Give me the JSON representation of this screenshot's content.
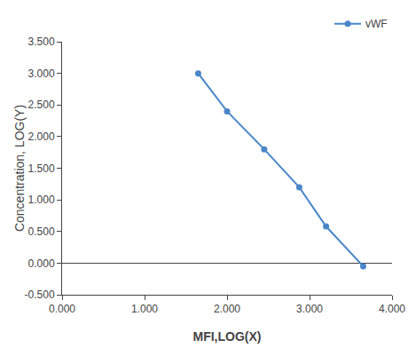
{
  "chart_data": {
    "type": "line",
    "x": [
      1.65,
      2.0,
      2.45,
      2.875,
      3.2,
      3.65
    ],
    "series": [
      {
        "name": "vWF",
        "color": "#4a86c8",
        "marker": "circle",
        "line_style": "solid",
        "values": [
          3.0,
          2.4,
          1.8,
          1.2,
          0.58,
          -0.05
        ]
      }
    ],
    "xlabel": "MFI,LOG(X)",
    "ylabel": "Concentration, LOG(Y)",
    "xlim": [
      0.0,
      4.0
    ],
    "ylim": [
      -0.5,
      3.5
    ],
    "xticks": [
      {
        "value": 0.0,
        "label": "0.000"
      },
      {
        "value": 1.0,
        "label": "1.000"
      },
      {
        "value": 2.0,
        "label": "2.000"
      },
      {
        "value": 3.0,
        "label": "3.000"
      },
      {
        "value": 4.0,
        "label": "4.000"
      }
    ],
    "yticks": [
      {
        "value": -0.5,
        "label": "-0.500"
      },
      {
        "value": 0.0,
        "label": "0.000"
      },
      {
        "value": 0.5,
        "label": "0.500"
      },
      {
        "value": 1.0,
        "label": "1.000"
      },
      {
        "value": 1.5,
        "label": "1.500"
      },
      {
        "value": 2.0,
        "label": "2.000"
      },
      {
        "value": 2.5,
        "label": "2.500"
      },
      {
        "value": 3.0,
        "label": "3.000"
      },
      {
        "value": 3.5,
        "label": "3.500"
      }
    ],
    "grid": false,
    "legend": "upper right"
  }
}
